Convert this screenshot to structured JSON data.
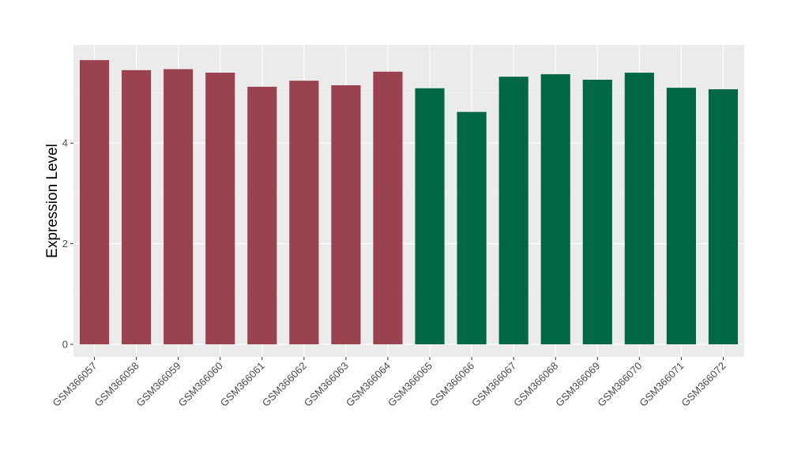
{
  "chart_data": {
    "type": "bar",
    "title": "",
    "xlabel": "",
    "ylabel": "Expression Level",
    "ylim": [
      -0.25,
      5.95
    ],
    "yticks": [
      0,
      2,
      4
    ],
    "grid": true,
    "legend": "none",
    "categories": [
      "GSM366057",
      "GSM366058",
      "GSM366059",
      "GSM366060",
      "GSM366061",
      "GSM366062",
      "GSM366063",
      "GSM366064",
      "GSM366065",
      "GSM366066",
      "GSM366067",
      "GSM366068",
      "GSM366069",
      "GSM366070",
      "GSM366071",
      "GSM366072"
    ],
    "values": [
      5.65,
      5.45,
      5.47,
      5.4,
      5.12,
      5.24,
      5.15,
      5.42,
      5.09,
      4.62,
      5.32,
      5.37,
      5.26,
      5.4,
      5.1,
      5.07
    ],
    "groups": [
      0,
      0,
      0,
      0,
      0,
      0,
      0,
      0,
      1,
      1,
      1,
      1,
      1,
      1,
      1,
      1
    ],
    "group_colors": [
      "#9a4250",
      "#006845"
    ]
  },
  "colors": {
    "panel_background": "#ebebeb",
    "grid_major": "#ffffff",
    "grid_minor": "#f5f5f5",
    "tick": "#333333"
  }
}
